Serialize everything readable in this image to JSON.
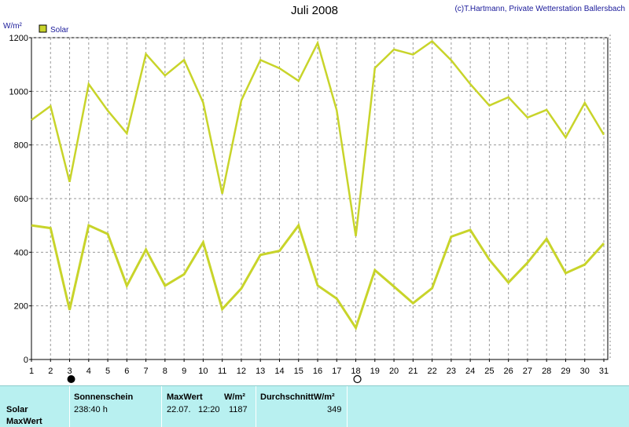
{
  "header": {
    "title": "Juli 2008",
    "credit": "(c)T.Hartmann, Private Wetterstation Ballersbach"
  },
  "chart_data": {
    "type": "line",
    "ylabel": "W/m²",
    "ylim": [
      0,
      1200
    ],
    "yticks": [
      0,
      200,
      400,
      600,
      800,
      1000,
      1200
    ],
    "x": [
      1,
      2,
      3,
      4,
      5,
      6,
      7,
      8,
      9,
      10,
      11,
      12,
      13,
      14,
      15,
      16,
      17,
      18,
      19,
      20,
      21,
      22,
      23,
      24,
      25,
      26,
      27,
      28,
      29,
      30,
      31
    ],
    "grid": true,
    "legend": {
      "label": "Solar",
      "placement": "top-left",
      "color": "#c8d42a"
    },
    "series": [
      {
        "color": "#c8d42a",
        "values": [
          893,
          945,
          662,
          1027,
          928,
          843,
          1139,
          1059,
          1117,
          958,
          618,
          966,
          1117,
          1086,
          1039,
          1180,
          929,
          460,
          1087,
          1156,
          1137,
          1187,
          1116,
          1027,
          947,
          978,
          902,
          931,
          828,
          957,
          838
        ]
      },
      {
        "color": "#c8d42a",
        "values": [
          500,
          490,
          185,
          500,
          468,
          275,
          410,
          275,
          318,
          437,
          188,
          265,
          390,
          405,
          500,
          276,
          227,
          118,
          333,
          272,
          210,
          266,
          458,
          483,
          372,
          287,
          361,
          450,
          322,
          354,
          433
        ]
      }
    ],
    "markers": [
      {
        "day": 3,
        "symbol": "filled-circle",
        "meaning": "new-moon"
      },
      {
        "day": 18,
        "symbol": "open-circle",
        "meaning": "full-moon"
      }
    ]
  },
  "stats": {
    "row_label_1": "Solar",
    "row_label_2": "MaxWert",
    "sunshine_header": "Sonnenschein",
    "sunshine_value": "238:40 h",
    "maxwert_header": "MaxWert",
    "unit_header": "W/m²",
    "max_date": "22.07.",
    "max_time": "12:20",
    "max_value": "1187",
    "avg_header": "DurchschnittW/m²",
    "avg_value": "349"
  }
}
